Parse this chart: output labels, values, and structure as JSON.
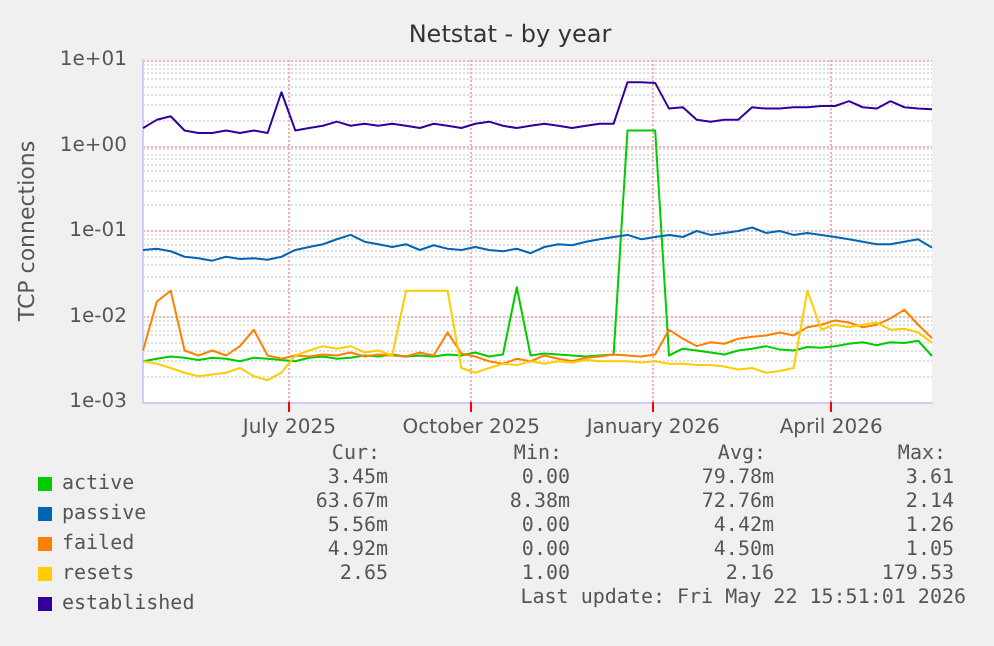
{
  "chart_data": {
    "type": "line",
    "title": "Netstat - by year",
    "ylabel": "TCP connections",
    "x": [
      "2025-04-18",
      "2025-04-25",
      "2025-05-02",
      "2025-05-09",
      "2025-05-16",
      "2025-05-23",
      "2025-05-30",
      "2025-06-06",
      "2025-06-13",
      "2025-06-20",
      "2025-06-27",
      "2025-07-04",
      "2025-07-11",
      "2025-07-18",
      "2025-07-25",
      "2025-08-01",
      "2025-08-08",
      "2025-08-15",
      "2025-08-22",
      "2025-08-29",
      "2025-09-05",
      "2025-09-12",
      "2025-09-19",
      "2025-09-26",
      "2025-10-03",
      "2025-10-10",
      "2025-10-17",
      "2025-10-24",
      "2025-10-31",
      "2025-11-07",
      "2025-11-14",
      "2025-11-21",
      "2025-11-28",
      "2025-12-05",
      "2025-12-12",
      "2025-12-19",
      "2025-12-26",
      "2026-01-02",
      "2026-01-09",
      "2026-01-16",
      "2026-01-23",
      "2026-01-30",
      "2026-02-06",
      "2026-02-13",
      "2026-02-20",
      "2026-02-27",
      "2026-03-06",
      "2026-03-13",
      "2026-03-20",
      "2026-03-27",
      "2026-04-03",
      "2026-04-10",
      "2026-04-17",
      "2026-04-24",
      "2026-05-01",
      "2026-05-08",
      "2026-05-15",
      "2026-05-22"
    ],
    "series": [
      {
        "name": "active",
        "color": "#00cc00",
        "values": [
          0.003,
          0.0032,
          0.0034,
          0.0033,
          0.0031,
          0.0033,
          0.0032,
          0.003,
          0.0033,
          0.0032,
          0.0031,
          0.003,
          0.0033,
          0.0034,
          0.0032,
          0.0033,
          0.0035,
          0.0034,
          0.0036,
          0.0034,
          0.0035,
          0.0034,
          0.0036,
          0.0035,
          0.0038,
          0.0034,
          0.0036,
          0.022,
          0.0035,
          0.0037,
          0.0036,
          0.0035,
          0.0034,
          0.0035,
          0.0036,
          1.5,
          1.5,
          1.5,
          0.0035,
          0.0042,
          0.004,
          0.0038,
          0.0036,
          0.004,
          0.0042,
          0.0045,
          0.0041,
          0.004,
          0.0044,
          0.0043,
          0.0045,
          0.0048,
          0.005,
          0.0046,
          0.005,
          0.0049,
          0.0052,
          0.00345
        ]
      },
      {
        "name": "passive",
        "color": "#0066b3",
        "values": [
          0.06,
          0.062,
          0.058,
          0.05,
          0.048,
          0.045,
          0.05,
          0.047,
          0.048,
          0.046,
          0.05,
          0.06,
          0.065,
          0.07,
          0.08,
          0.09,
          0.075,
          0.07,
          0.065,
          0.07,
          0.06,
          0.068,
          0.062,
          0.06,
          0.065,
          0.06,
          0.058,
          0.062,
          0.055,
          0.065,
          0.07,
          0.068,
          0.075,
          0.08,
          0.085,
          0.09,
          0.08,
          0.085,
          0.09,
          0.085,
          0.1,
          0.09,
          0.095,
          0.1,
          0.11,
          0.095,
          0.1,
          0.09,
          0.095,
          0.09,
          0.085,
          0.08,
          0.075,
          0.07,
          0.07,
          0.075,
          0.08,
          0.064
        ]
      },
      {
        "name": "failed",
        "color": "#ff8000",
        "values": [
          0.004,
          0.015,
          0.02,
          0.004,
          0.0035,
          0.004,
          0.0035,
          0.0045,
          0.007,
          0.0035,
          0.0032,
          0.0035,
          0.0034,
          0.0036,
          0.0035,
          0.0038,
          0.0034,
          0.0036,
          0.0035,
          0.0034,
          0.0038,
          0.0035,
          0.0065,
          0.0037,
          0.0034,
          0.003,
          0.0028,
          0.0032,
          0.003,
          0.0035,
          0.0032,
          0.003,
          0.0033,
          0.0034,
          0.0036,
          0.0035,
          0.0034,
          0.0036,
          0.007,
          0.0055,
          0.0045,
          0.005,
          0.0048,
          0.0055,
          0.0058,
          0.006,
          0.0065,
          0.006,
          0.0075,
          0.008,
          0.009,
          0.0085,
          0.0075,
          0.008,
          0.0095,
          0.012,
          0.008,
          0.00556
        ]
      },
      {
        "name": "resets",
        "color": "#ffcc00",
        "values": [
          0.003,
          0.0028,
          0.0025,
          0.0022,
          0.002,
          0.0021,
          0.0022,
          0.0025,
          0.002,
          0.0018,
          0.0022,
          0.0035,
          0.004,
          0.0045,
          0.0042,
          0.0045,
          0.0038,
          0.004,
          0.0035,
          0.02,
          0.02,
          0.02,
          0.02,
          0.0025,
          0.0022,
          0.0025,
          0.0028,
          0.0027,
          0.003,
          0.0028,
          0.003,
          0.0029,
          0.0031,
          0.003,
          0.003,
          0.003,
          0.0029,
          0.003,
          0.0028,
          0.0028,
          0.0027,
          0.0027,
          0.0026,
          0.0024,
          0.0025,
          0.0022,
          0.0023,
          0.0025,
          0.02,
          0.007,
          0.008,
          0.0075,
          0.008,
          0.0085,
          0.007,
          0.0072,
          0.0065,
          0.00492
        ]
      },
      {
        "name": "established",
        "color": "#330099",
        "values": [
          1.6,
          2.0,
          2.2,
          1.5,
          1.4,
          1.4,
          1.5,
          1.4,
          1.5,
          1.4,
          4.2,
          1.5,
          1.6,
          1.7,
          1.9,
          1.7,
          1.8,
          1.7,
          1.8,
          1.7,
          1.6,
          1.8,
          1.7,
          1.6,
          1.8,
          1.9,
          1.7,
          1.6,
          1.7,
          1.8,
          1.7,
          1.6,
          1.7,
          1.8,
          1.8,
          5.5,
          5.5,
          5.4,
          2.7,
          2.8,
          2.0,
          1.9,
          2.0,
          2.0,
          2.8,
          2.7,
          2.7,
          2.8,
          2.8,
          2.9,
          2.9,
          3.3,
          2.8,
          2.7,
          3.3,
          2.8,
          2.7,
          2.65
        ]
      }
    ],
    "xlim": [
      "2025-04-18",
      "2026-05-22"
    ],
    "xticks": [
      {
        "value": "2025-07-01",
        "label": "July 2025"
      },
      {
        "value": "2025-10-01",
        "label": "October 2025"
      },
      {
        "value": "2026-01-01",
        "label": "January 2026"
      },
      {
        "value": "2026-04-01",
        "label": "April 2026"
      }
    ],
    "ylim": [
      0.001,
      10
    ],
    "yticks": [
      {
        "value": 0.001,
        "label": "1e-03"
      },
      {
        "value": 0.01,
        "label": "1e-02"
      },
      {
        "value": 0.1,
        "label": "1e-01"
      },
      {
        "value": 1,
        "label": "1e+00"
      },
      {
        "value": 10,
        "label": "1e+01"
      }
    ],
    "log": "y",
    "grid": true,
    "legend": "bottom left",
    "marker": "none",
    "line_style": "solid",
    "annotations": [
      "Cur:",
      "Min:",
      "Avg:",
      "Max:",
      "3.45m",
      "0.00",
      "79.78m",
      "3.61",
      "63.67m",
      "8.38m",
      "72.76m",
      "2.14",
      "5.56m",
      "0.00",
      "4.42m",
      "1.26",
      "4.92m",
      "0.00",
      "4.50m",
      "1.05",
      "2.65",
      "1.00",
      "2.16",
      "179.53",
      "Last update: Fri May 22 15:51:01 2026"
    ]
  }
}
